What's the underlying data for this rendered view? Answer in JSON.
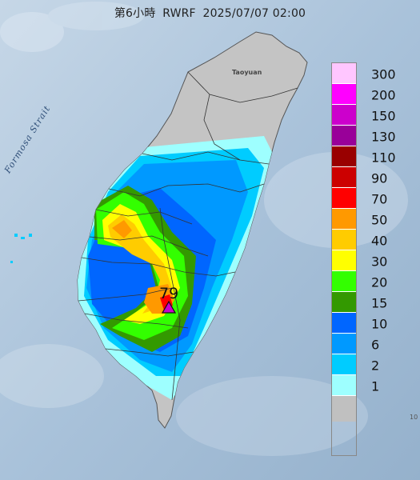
{
  "header": {
    "period": "第6小時",
    "model": "RWRF",
    "datetime": "2025/07/07 02:00"
  },
  "labels": {
    "sea": "Formosa Strait",
    "city": "Taoyuan",
    "edge_text": "10"
  },
  "legend": {
    "levels": [
      {
        "label": "300",
        "color": "#ffc6ff"
      },
      {
        "label": "200",
        "color": "#ff00ff"
      },
      {
        "label": "150",
        "color": "#cc00cc"
      },
      {
        "label": "130",
        "color": "#990099"
      },
      {
        "label": "110",
        "color": "#990000"
      },
      {
        "label": "90",
        "color": "#cc0000"
      },
      {
        "label": "70",
        "color": "#ff0000"
      },
      {
        "label": "50",
        "color": "#ff9900"
      },
      {
        "label": "40",
        "color": "#ffcc00"
      },
      {
        "label": "30",
        "color": "#ffff00"
      },
      {
        "label": "20",
        "color": "#33ff00"
      },
      {
        "label": "15",
        "color": "#339900"
      },
      {
        "label": "10",
        "color": "#0066ff"
      },
      {
        "label": "6",
        "color": "#0099ff"
      },
      {
        "label": "2",
        "color": "#00ccff"
      },
      {
        "label": "1",
        "color": "#9effff"
      },
      {
        "label": "",
        "color": "#c0c0c0"
      }
    ]
  },
  "max_point": {
    "value": "79",
    "marker_color": "#cc00cc"
  }
}
